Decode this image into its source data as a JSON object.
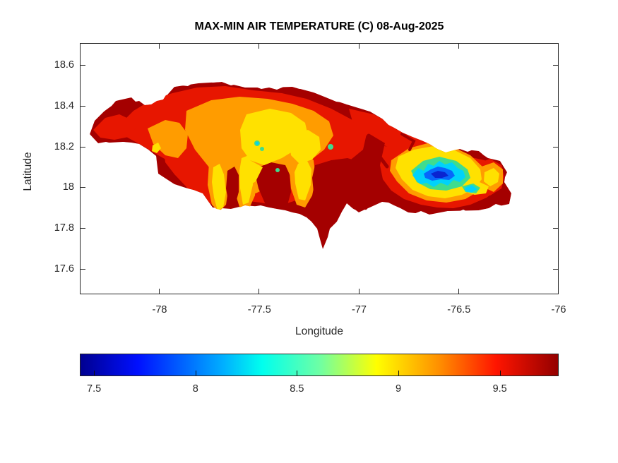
{
  "chart_data": {
    "type": "heatmap",
    "subtype": "filled-contour-map",
    "region": "Jamaica",
    "title": "MAX-MIN AIR TEMPERATURE (C) 08-Aug-2025",
    "xlabel": "Longitude",
    "ylabel": "Latitude",
    "xlim": [
      -78.4,
      -76.0
    ],
    "ylim": [
      17.48,
      18.71
    ],
    "xticks": [
      -78,
      -77.5,
      -77,
      -76.5,
      -76
    ],
    "xtick_labels": [
      "-78",
      "-77.5",
      "-77",
      "-76.5",
      "-76"
    ],
    "yticks": [
      18.6,
      18.4,
      18.2,
      18,
      17.8,
      17.6
    ],
    "ytick_labels": [
      "18.6",
      "18.4",
      "18.2",
      "18",
      "17.8",
      "17.6"
    ],
    "grid": false,
    "box": true,
    "tick_direction": "in",
    "units": "degrees C",
    "levels": [
      {
        "name": "dark-blue",
        "color": "#0a24d0",
        "approx_value_c": "7.4-7.6"
      },
      {
        "name": "blue",
        "color": "#0766fb",
        "approx_value_c": "7.6-7.9"
      },
      {
        "name": "cyan",
        "color": "#00d2fa",
        "approx_value_c": "8.0-8.3"
      },
      {
        "name": "green",
        "color": "#3fdc8e",
        "approx_value_c": "8.3-8.6"
      },
      {
        "name": "yellow",
        "color": "#ffe100",
        "approx_value_c": "8.7-8.9"
      },
      {
        "name": "orange",
        "color": "#ff9c00",
        "approx_value_c": "9.0-9.2"
      },
      {
        "name": "red",
        "color": "#e71600",
        "approx_value_c": "9.3-9.5"
      },
      {
        "name": "dark-red",
        "color": "#a40000",
        "approx_value_c": "9.6-9.8"
      }
    ],
    "features": [
      {
        "area": "coastal lowlands island-wide",
        "reading_c": "9.5-9.8"
      },
      {
        "area": "west-central interior plateau",
        "reading_c": "8.7-9.2"
      },
      {
        "area": "central interior specks",
        "reading_c": "8.3-8.6"
      },
      {
        "area": "south-central plains",
        "reading_c": "9.6-9.8"
      },
      {
        "area": "Blue Mountains minimum near lon -76.6 lat 18.05",
        "reading_c": "7.4-8.0"
      },
      {
        "area": "eastern tip secondary minimum",
        "reading_c": "8.4-8.9"
      }
    ],
    "colorbar": {
      "orientation": "horizontal",
      "colormap": "jet",
      "range": [
        7.43,
        9.79
      ],
      "ticks": [
        7.5,
        8,
        8.5,
        9,
        9.5
      ],
      "tick_labels": [
        "7.5",
        "8",
        "8.5",
        "9",
        "9.5"
      ],
      "stops": [
        {
          "pos": 0,
          "color": "#000090"
        },
        {
          "pos": 0.12,
          "color": "#0010ff"
        },
        {
          "pos": 0.3,
          "color": "#00b0ff"
        },
        {
          "pos": 0.38,
          "color": "#00ffee"
        },
        {
          "pos": 0.5,
          "color": "#6dffa5"
        },
        {
          "pos": 0.62,
          "color": "#ffff00"
        },
        {
          "pos": 0.75,
          "color": "#ff9000"
        },
        {
          "pos": 0.87,
          "color": "#ff1500"
        },
        {
          "pos": 1,
          "color": "#940000"
        }
      ]
    }
  }
}
